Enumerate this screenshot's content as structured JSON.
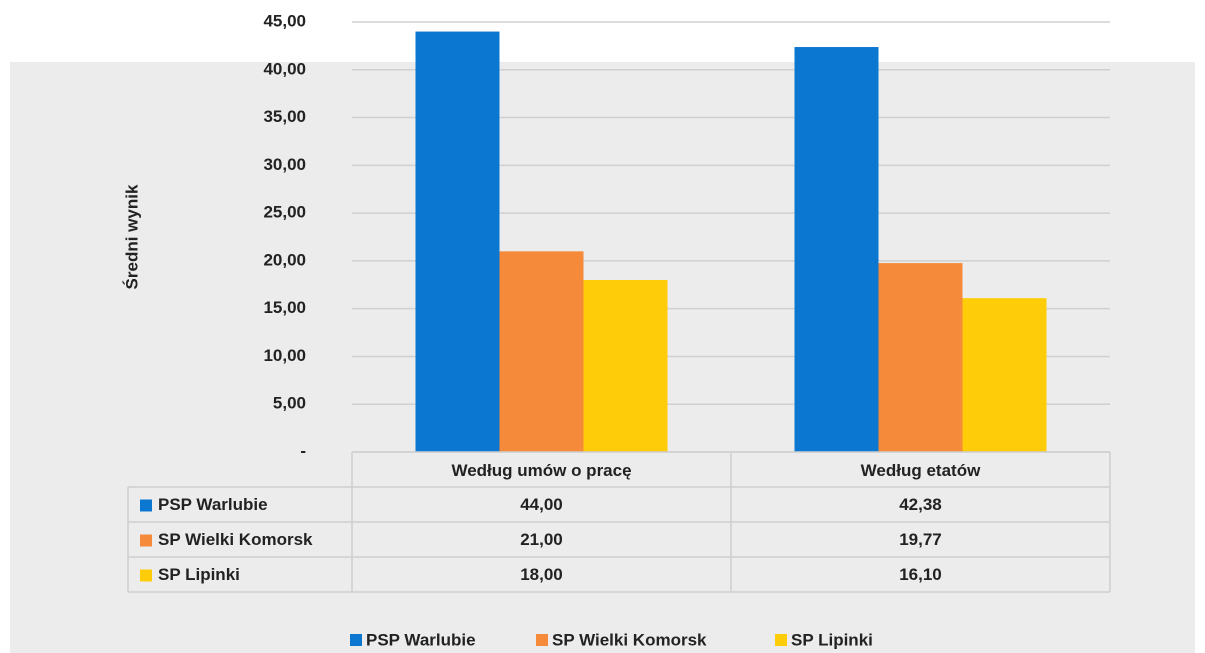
{
  "chart_data": {
    "type": "bar",
    "y_label": "Średni wynik",
    "categories": [
      "Według umów o pracę",
      "Według etatów"
    ],
    "series": [
      {
        "name": "PSP Warlubie",
        "color": "#0b77d0",
        "values": [
          44,
          42.38
        ],
        "value_labels": [
          "44,00",
          "42,38"
        ]
      },
      {
        "name": "SP Wielki Komorsk",
        "color": "#f58a3b",
        "values": [
          21,
          19.77
        ],
        "value_labels": [
          "21,00",
          "19,77"
        ]
      },
      {
        "name": "SP Lipinki",
        "color": "#ffcc0a",
        "values": [
          18,
          16.1
        ],
        "value_labels": [
          "18,00",
          "16,10"
        ]
      }
    ],
    "ylim": [
      0,
      45
    ],
    "yticks": [
      {
        "value": 0,
        "label": "-"
      },
      {
        "value": 5,
        "label": "5,00"
      },
      {
        "value": 10,
        "label": "10,00"
      },
      {
        "value": 15,
        "label": "15,00"
      },
      {
        "value": 20,
        "label": "20,00"
      },
      {
        "value": 25,
        "label": "25,00"
      },
      {
        "value": 30,
        "label": "30,00"
      },
      {
        "value": 35,
        "label": "35,00"
      },
      {
        "value": 40,
        "label": "40,00"
      },
      {
        "value": 45,
        "label": "45,00"
      }
    ],
    "grid": true,
    "legend": "bottom"
  }
}
